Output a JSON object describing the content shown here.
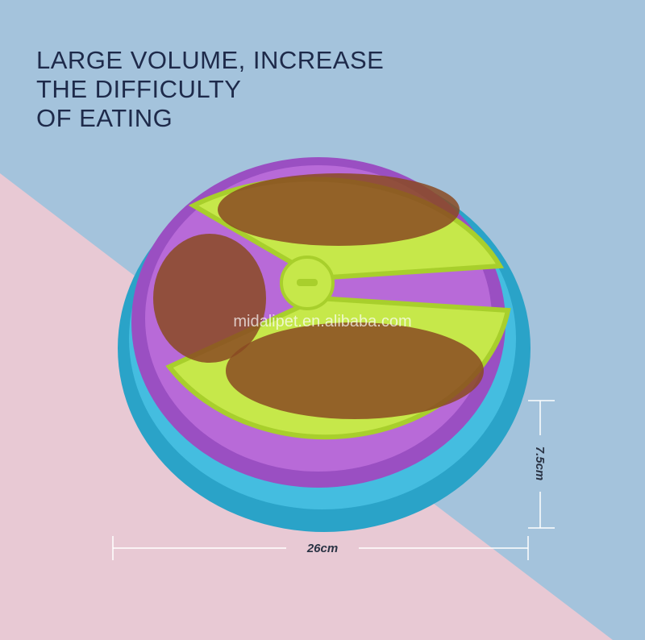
{
  "heading": {
    "lines": [
      "LARGE VOLUME, INCREASE",
      "THE DIFFICULTY",
      "OF EATING"
    ]
  },
  "watermark": "midalipet.en.alibaba.com",
  "dimensions": {
    "width": "26cm",
    "height": "7.5cm"
  }
}
